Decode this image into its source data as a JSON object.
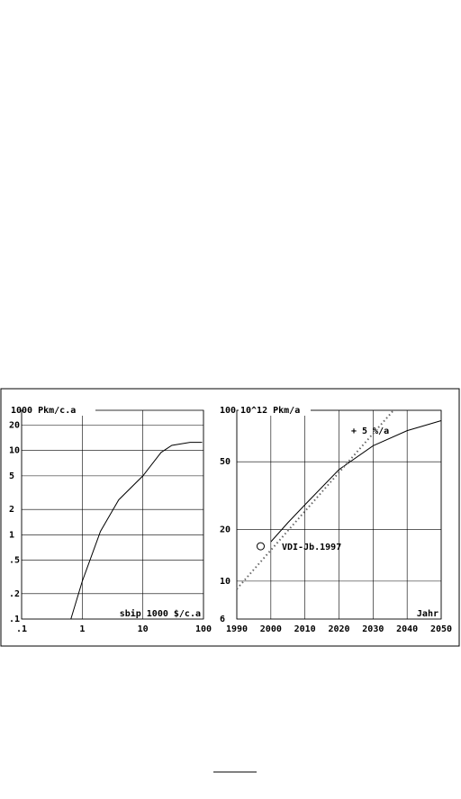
{
  "chart_data": [
    {
      "type": "line",
      "x_label": "sbip 1000 $/c.a",
      "y_label": "1000 Pkm/c.a",
      "xlog": true,
      "ylog": true,
      "grid": true,
      "xlim": [
        0.1,
        100
      ],
      "xticks": [
        {
          "value": 0.1,
          "label": ".1"
        },
        1,
        10,
        100
      ],
      "ylim": [
        0.1,
        30
      ],
      "yticks": [
        {
          "value": 0.1,
          "label": ".1"
        },
        {
          "value": 0.2,
          "label": ".2"
        },
        {
          "value": 0.5,
          "label": ".5"
        },
        1,
        2,
        5,
        10,
        20
      ],
      "series": [
        {
          "color": "#000000",
          "x": [
            0.65,
            1,
            2,
            4,
            10,
            20,
            30,
            60,
            95
          ],
          "values": [
            0.1,
            0.28,
            1.1,
            2.6,
            5,
            9.5,
            11.5,
            12.5,
            12.5
          ]
        }
      ]
    },
    {
      "type": "line",
      "x_label": "Jahr",
      "y_label": "10^12 Pkm/a",
      "xlog": false,
      "ylog": true,
      "grid": true,
      "xlim": [
        1990,
        2050
      ],
      "xticks": [
        1990,
        2000,
        2010,
        2020,
        2030,
        2040,
        2050
      ],
      "ylim": [
        6,
        100
      ],
      "yticks": [
        6,
        10,
        20,
        50,
        100
      ],
      "annotations": [
        "+ 5 %/a",
        "VDI-Jb.1997"
      ],
      "series": [
        {
          "color": "#000000",
          "x": [
            2000,
            2005,
            2010,
            2020,
            2030,
            2040,
            2050
          ],
          "values": [
            17,
            22,
            28,
            45,
            62,
            76,
            87
          ]
        },
        {
          "color": "#666666",
          "dash": true,
          "x": [
            1990,
            2036
          ],
          "values": [
            9,
            100
          ]
        },
        {
          "color": "#000000",
          "marker": true,
          "x": [
            1997
          ],
          "values": [
            16
          ]
        }
      ]
    }
  ]
}
